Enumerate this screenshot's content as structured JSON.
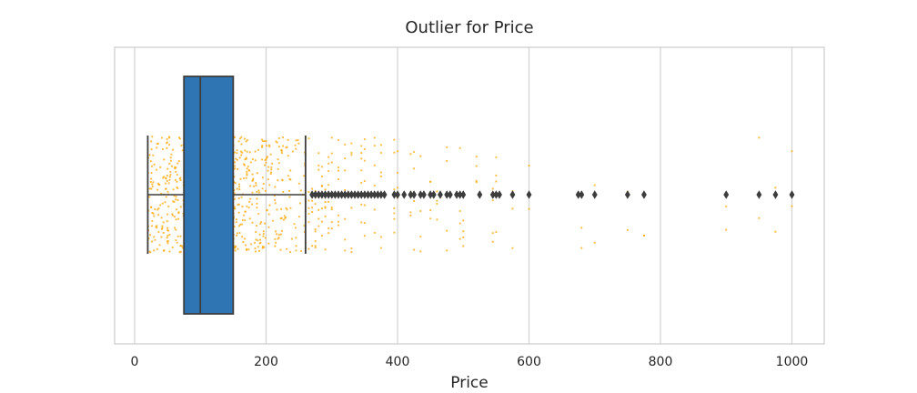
{
  "chart_data": {
    "type": "box",
    "title": "Outlier for Price",
    "xlabel": "Price",
    "ylabel": "",
    "xlim": [
      -30,
      1050
    ],
    "xticks": [
      0,
      200,
      400,
      600,
      800,
      1000
    ],
    "xtick_labels": [
      "0",
      "200",
      "400",
      "600",
      "800",
      "1000"
    ],
    "grid": "vertical",
    "colors": {
      "box_fill": "#2f75b3",
      "box_edge": "#3d3d3d",
      "strip_points": "#ffa500",
      "grid": "#d3d3d3",
      "frame": "#cccccc"
    },
    "box": {
      "whisker_low": 20,
      "q1": 75,
      "median": 100,
      "q3": 150,
      "whisker_high": 260
    },
    "outliers": [
      270,
      275,
      280,
      285,
      290,
      295,
      300,
      305,
      310,
      315,
      320,
      325,
      330,
      335,
      340,
      345,
      350,
      355,
      360,
      365,
      370,
      375,
      380,
      395,
      400,
      410,
      420,
      425,
      435,
      440,
      450,
      455,
      465,
      475,
      480,
      490,
      495,
      500,
      525,
      545,
      550,
      555,
      575,
      600,
      675,
      680,
      700,
      750,
      775,
      900,
      950,
      975,
      1000
    ],
    "strip_sparse_values": [
      260,
      265,
      270,
      275,
      280,
      285,
      290,
      295,
      300,
      310,
      320,
      330,
      345,
      350,
      365,
      375,
      395,
      400,
      420,
      425,
      435,
      450,
      460,
      475,
      495,
      500,
      520,
      545,
      550,
      575,
      600,
      680,
      700,
      750,
      775,
      900,
      950,
      975,
      1000
    ]
  }
}
